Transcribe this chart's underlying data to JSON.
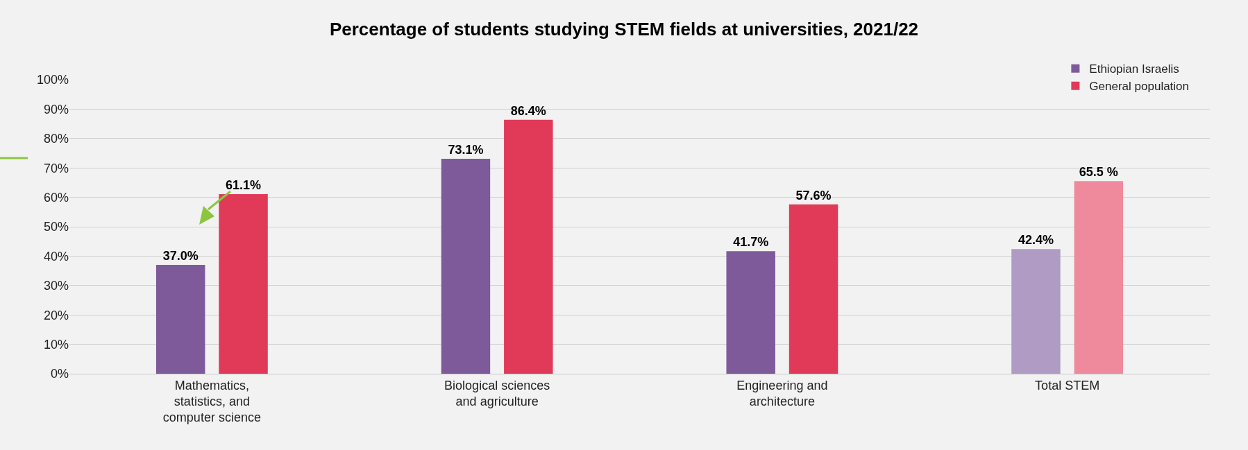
{
  "chart_data": {
    "type": "bar",
    "title": "Percentage of students studying STEM fields at universities, 2021/22",
    "categories": [
      "Mathematics, statistics, and computer science",
      "Biological sciences and agriculture",
      "Engineering and architecture",
      "Total STEM"
    ],
    "series": [
      {
        "name": "Ethiopian Israelis",
        "color": "#7f5a9b",
        "colors": [
          null,
          null,
          null,
          "#b09bc4"
        ],
        "values": [
          37.0,
          73.1,
          41.7,
          42.4
        ],
        "value_labels": [
          "37.0%",
          "73.1%",
          "41.7%",
          "42.4%"
        ]
      },
      {
        "name": "General population",
        "color": "#e13a58",
        "colors": [
          null,
          null,
          null,
          "#ef8a9c"
        ],
        "values": [
          61.1,
          86.4,
          57.6,
          65.5
        ],
        "value_labels": [
          "61.1%",
          "86.4%",
          "57.6%",
          "65.5 %"
        ]
      }
    ],
    "ylim": [
      0,
      100
    ],
    "yticks": [
      {
        "value": 0,
        "label": "0%"
      },
      {
        "value": 10,
        "label": "10%"
      },
      {
        "value": 20,
        "label": "20%"
      },
      {
        "value": 30,
        "label": "30%"
      },
      {
        "value": 40,
        "label": "40%"
      },
      {
        "value": 50,
        "label": "50%"
      },
      {
        "value": 60,
        "label": "60%"
      },
      {
        "value": 70,
        "label": "70%"
      },
      {
        "value": 80,
        "label": "80%"
      },
      {
        "value": 90,
        "label": "90%"
      },
      {
        "value": 100,
        "label": "100%"
      }
    ],
    "grid": "y",
    "legend": "top right"
  }
}
